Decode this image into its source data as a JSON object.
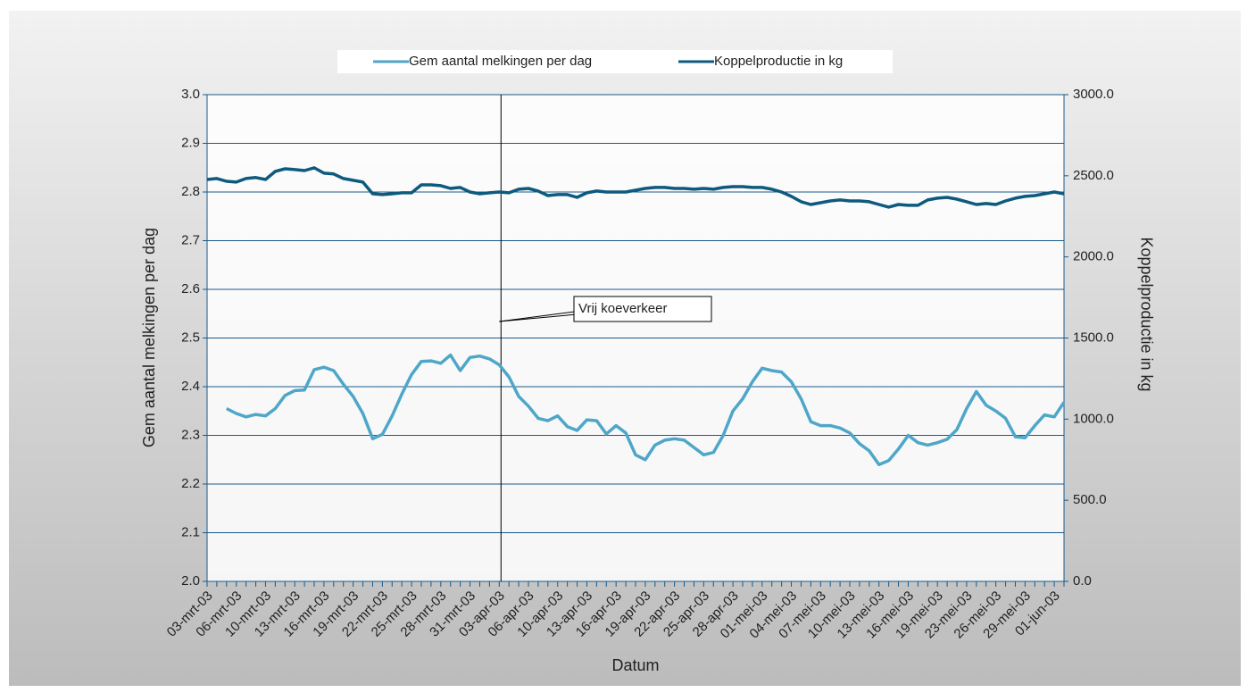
{
  "chart_data": {
    "type": "line",
    "x_label": "Datum",
    "y_label": "Gem aantal melkingen per dag",
    "y2_label": "Koppelproductie in kg",
    "annotation": {
      "text": "Vrij koeverkeer",
      "category": "03-apr-03"
    },
    "grid": true,
    "legend": "top",
    "categories": [
      "03-mrt-03",
      null,
      null,
      "06-mrt-03",
      null,
      null,
      "10-mrt-03",
      null,
      null,
      "13-mrt-03",
      null,
      null,
      "16-mrt-03",
      null,
      null,
      "19-mrt-03",
      null,
      null,
      "22-mrt-03",
      null,
      null,
      "25-mrt-03",
      null,
      null,
      "28-mrt-03",
      null,
      null,
      "31-mrt-03",
      null,
      null,
      "03-apr-03",
      null,
      null,
      "06-apr-03",
      null,
      null,
      "10-apr-03",
      null,
      null,
      "13-apr-03",
      null,
      null,
      "16-apr-03",
      null,
      null,
      "19-apr-03",
      null,
      null,
      "22-apr-03",
      null,
      null,
      "25-apr-03",
      null,
      null,
      "28-apr-03",
      null,
      null,
      "01-mei-03",
      null,
      null,
      "04-mei-03",
      null,
      null,
      "07-mei-03",
      null,
      null,
      "10-mei-03",
      null,
      null,
      "13-mei-03",
      null,
      null,
      "16-mei-03",
      null,
      null,
      "19-mei-03",
      null,
      null,
      "23-mei-03",
      null,
      null,
      "26-mei-03",
      null,
      null,
      "29-mei-03",
      null,
      null,
      "01-jun-03",
      null
    ],
    "ylim": [
      2.0,
      3.0
    ],
    "yticks": [
      {
        "value": 2,
        "label": "2.0"
      },
      2.1,
      2.2,
      2.3,
      2.4,
      2.5,
      2.6,
      2.7,
      2.8,
      2.9,
      {
        "value": 3,
        "label": "3.0"
      }
    ],
    "y2lim": [
      0,
      3000
    ],
    "y2ticks": [
      {
        "value": 0,
        "label": "0.0"
      },
      {
        "value": 500,
        "label": "500.0"
      },
      {
        "value": 1000,
        "label": "1000.0"
      },
      {
        "value": 1500,
        "label": "1500.0"
      },
      {
        "value": 2000,
        "label": "2000.0"
      },
      {
        "value": 2500,
        "label": "2500.0"
      },
      {
        "value": 3000,
        "label": "3000.0"
      }
    ],
    "series": [
      {
        "name": "Gem aantal melkingen per dag",
        "color": "#4ea6c9",
        "axis": "y",
        "values": [
          null,
          null,
          2.355,
          2.345,
          2.338,
          2.343,
          2.34,
          2.355,
          2.382,
          2.392,
          2.393,
          2.435,
          2.44,
          2.433,
          2.405,
          2.38,
          2.345,
          2.293,
          2.302,
          2.34,
          2.385,
          2.425,
          2.452,
          2.453,
          2.448,
          2.465,
          2.433,
          2.46,
          2.463,
          2.457,
          2.445,
          2.42,
          2.38,
          2.36,
          2.335,
          2.33,
          2.34,
          2.318,
          2.31,
          2.332,
          2.33,
          2.303,
          2.32,
          2.305,
          2.26,
          2.25,
          2.28,
          2.29,
          2.293,
          2.29,
          2.275,
          2.26,
          2.265,
          2.3,
          2.35,
          2.375,
          2.41,
          2.438,
          2.433,
          2.43,
          2.41,
          2.375,
          2.328,
          2.32,
          2.32,
          2.315,
          2.305,
          2.283,
          2.268,
          2.24,
          2.248,
          2.272,
          2.3,
          2.285,
          2.28,
          2.285,
          2.292,
          2.312,
          2.355,
          2.39,
          2.362,
          2.35,
          2.335,
          2.297,
          2.295,
          2.32,
          2.342,
          2.338,
          2.368
        ]
      },
      {
        "name": "Koppelproductie in kg",
        "color": "#0e5a7e",
        "axis": "y2",
        "values": [
          2477,
          2483,
          2466,
          2461,
          2483,
          2489,
          2477,
          2527,
          2543,
          2538,
          2532,
          2549,
          2516,
          2511,
          2483,
          2472,
          2461,
          2389,
          2384,
          2389,
          2395,
          2395,
          2444,
          2444,
          2439,
          2422,
          2428,
          2400,
          2389,
          2395,
          2400,
          2395,
          2417,
          2422,
          2406,
          2378,
          2384,
          2384,
          2367,
          2395,
          2406,
          2400,
          2400,
          2400,
          2411,
          2422,
          2428,
          2428,
          2422,
          2422,
          2417,
          2422,
          2417,
          2428,
          2433,
          2433,
          2428,
          2428,
          2417,
          2400,
          2373,
          2340,
          2323,
          2334,
          2345,
          2351,
          2345,
          2345,
          2340,
          2323,
          2307,
          2323,
          2318,
          2318,
          2351,
          2362,
          2367,
          2356,
          2340,
          2323,
          2329,
          2323,
          2345,
          2362,
          2373,
          2378,
          2389,
          2400,
          2389
        ]
      }
    ]
  }
}
